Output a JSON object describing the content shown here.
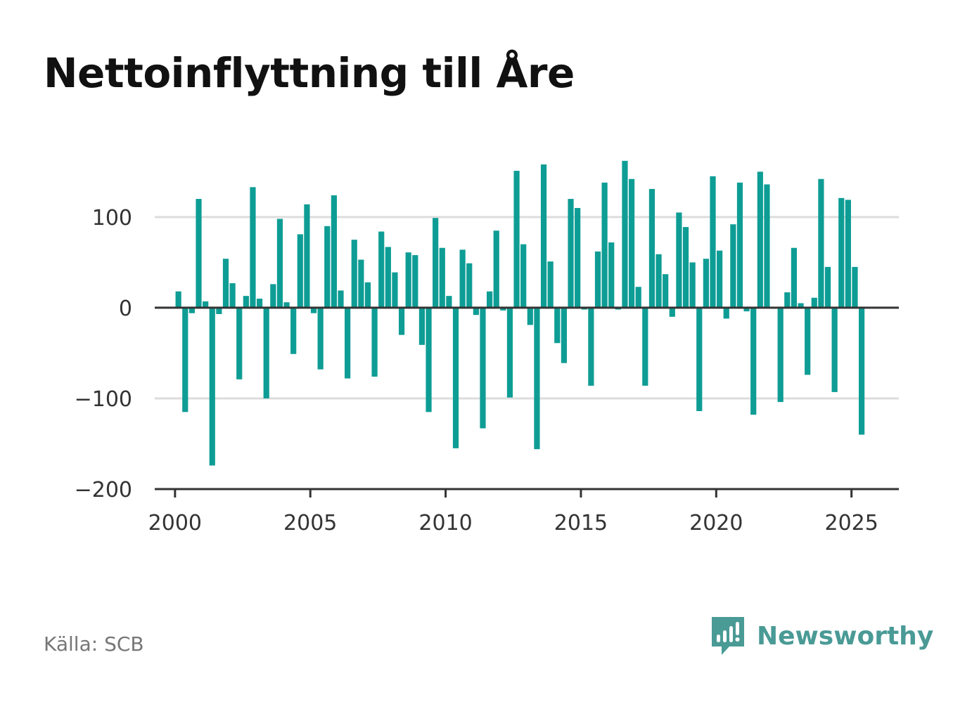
{
  "title": "Nettoinflyttning till Åre",
  "source": "Källa: SCB",
  "brand": {
    "name": "Newsworthy",
    "icon": "newsworthy-chart-bubble-icon"
  },
  "colors": {
    "bar": "#0e9d95",
    "axis": "#333333",
    "grid": "#dddddd",
    "brand": "#4a9a96"
  },
  "chart_data": {
    "type": "bar",
    "x_ticks": [
      2000,
      2005,
      2010,
      2015,
      2020,
      2025
    ],
    "y_ticks": [
      -200,
      -100,
      0,
      100
    ],
    "y_tick_labels": [
      "−200",
      "−100",
      "0",
      "100"
    ],
    "xlim": [
      1999.25,
      2026.75
    ],
    "ylim": [
      -200,
      165
    ],
    "grid": true,
    "series": [
      {
        "x": [
          2000.125,
          2000.375,
          2000.625,
          2000.875,
          2001.125,
          2001.375,
          2001.625,
          2001.875,
          2002.125,
          2002.375,
          2002.625,
          2002.875,
          2003.125,
          2003.375,
          2003.625,
          2003.875,
          2004.125,
          2004.375,
          2004.625,
          2004.875,
          2005.125,
          2005.375,
          2005.625,
          2005.875,
          2006.125,
          2006.375,
          2006.625,
          2006.875,
          2007.125,
          2007.375,
          2007.625,
          2007.875,
          2008.125,
          2008.375,
          2008.625,
          2008.875,
          2009.125,
          2009.375,
          2009.625,
          2009.875,
          2010.125,
          2010.375,
          2010.625,
          2010.875,
          2011.125,
          2011.375,
          2011.625,
          2011.875,
          2012.125,
          2012.375,
          2012.625,
          2012.875,
          2013.125,
          2013.375,
          2013.625,
          2013.875,
          2014.125,
          2014.375,
          2014.625,
          2014.875,
          2015.125,
          2015.375,
          2015.625,
          2015.875,
          2016.125,
          2016.375,
          2016.625,
          2016.875,
          2017.125,
          2017.375,
          2017.625,
          2017.875,
          2018.125,
          2018.375,
          2018.625,
          2018.875,
          2019.125,
          2019.375,
          2019.625,
          2019.875,
          2020.125,
          2020.375,
          2020.625,
          2020.875,
          2021.125,
          2021.375,
          2021.625,
          2021.875,
          2022.125,
          2022.375,
          2022.625,
          2022.875,
          2023.125,
          2023.375,
          2023.625,
          2023.875,
          2024.125,
          2024.375,
          2024.625,
          2024.875,
          2025.125,
          2025.375
        ],
        "values": [
          18,
          -115,
          -6,
          120,
          7,
          -174,
          -7,
          54,
          27,
          -79,
          13,
          133,
          10,
          -100,
          26,
          98,
          6,
          -51,
          81,
          114,
          -6,
          -68,
          90,
          124,
          19,
          -78,
          75,
          53,
          28,
          -76,
          84,
          67,
          39,
          -30,
          61,
          58,
          -41,
          -115,
          99,
          66,
          13,
          -155,
          64,
          49,
          -8,
          -133,
          18,
          85,
          -3,
          -99,
          151,
          70,
          -19,
          -156,
          158,
          51,
          -39,
          -61,
          120,
          110,
          -2,
          -86,
          62,
          138,
          72,
          -2,
          162,
          142,
          23,
          -86,
          131,
          59,
          37,
          -10,
          105,
          89,
          50,
          -114,
          54,
          145,
          63,
          -12,
          92,
          138,
          -4,
          -118,
          150,
          136,
          -1,
          -104,
          17,
          66,
          5,
          -74,
          11,
          142,
          45,
          -93,
          121,
          119,
          45,
          -140
        ]
      }
    ]
  }
}
